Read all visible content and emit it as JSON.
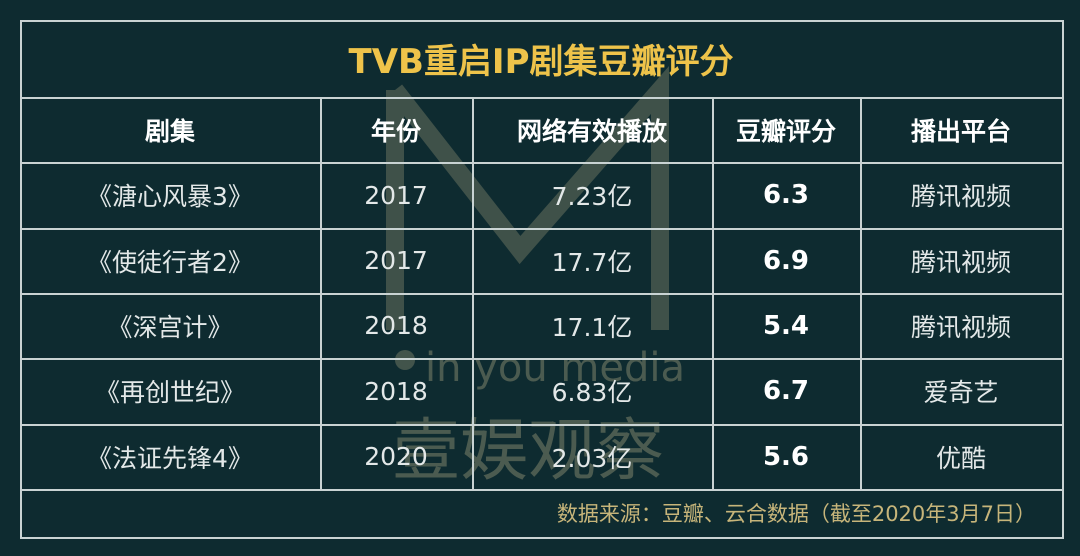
{
  "title": "TVB重启IP剧集豆瓣评分",
  "table": {
    "header": [
      "剧集",
      "年份",
      "网络有效播放",
      "豆瓣评分",
      "播出平台"
    ],
    "rows": [
      [
        "《溏心风暴3》",
        "2017",
        "7.23亿",
        "6.3",
        "腾讯视频"
      ],
      [
        "《使徒行者2》",
        "2017",
        "17.7亿",
        "6.9",
        "腾讯视频"
      ],
      [
        "《深宫计》",
        "2018",
        "17.1亿",
        "5.4",
        "腾讯视频"
      ],
      [
        "《再创世纪》",
        "2018",
        "6.83亿",
        "6.7",
        "爱奇艺"
      ],
      [
        "《法证先锋4》",
        "2020",
        "2.03亿",
        "5.6",
        "优酷"
      ]
    ]
  },
  "footer": "数据来源：豆瓣、云合数据（截至2020年3月7日）",
  "watermark": {
    "tagline": "in you media",
    "brand": "壹娱观察"
  }
}
